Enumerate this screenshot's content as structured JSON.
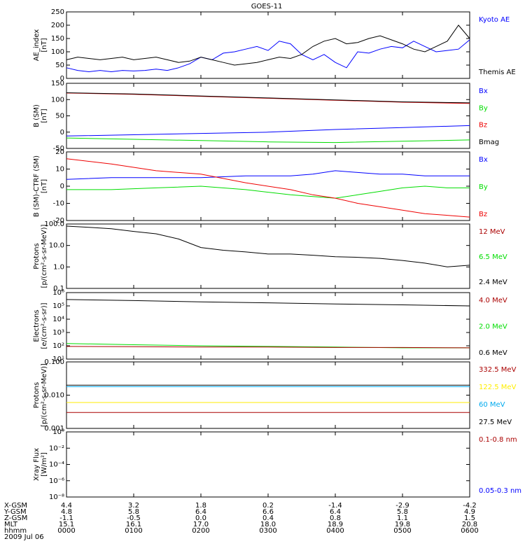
{
  "title": "GOES-11",
  "colors": {
    "black": "#000000",
    "blue": "#0000ff",
    "green": "#00dd00",
    "red": "#ee0000",
    "darkred": "#aa0000",
    "yellow": "#ffee00",
    "cyan": "#00aaee"
  },
  "chart_data": [
    {
      "type": "line",
      "id": "ae",
      "ylabel": [
        "AE_index",
        "[nT]"
      ],
      "ylim": [
        0,
        250
      ],
      "yticks": [
        "0",
        "50",
        "100",
        "150",
        "200",
        "250"
      ],
      "legend": [
        {
          "name": "Kyoto AE",
          "color": "blue"
        },
        {
          "name": "Themis AE",
          "color": "black"
        }
      ],
      "series": [
        {
          "name": "Kyoto AE",
          "color": "blue",
          "x": [
            0,
            10,
            20,
            30,
            40,
            50,
            60,
            70,
            80,
            90,
            100,
            110,
            120,
            130,
            140,
            150,
            160,
            170,
            180,
            190,
            200,
            210,
            220,
            230,
            240,
            250,
            260,
            270,
            280,
            290,
            300,
            310,
            320,
            330,
            340,
            350,
            360
          ],
          "values": [
            40,
            30,
            25,
            30,
            25,
            30,
            28,
            30,
            35,
            30,
            40,
            55,
            80,
            70,
            95,
            100,
            110,
            120,
            105,
            140,
            130,
            90,
            70,
            90,
            60,
            40,
            100,
            95,
            110,
            120,
            115,
            140,
            120,
            100,
            105,
            110,
            145
          ]
        },
        {
          "name": "Themis AE",
          "color": "black",
          "x": [
            0,
            10,
            20,
            30,
            40,
            50,
            60,
            70,
            80,
            90,
            100,
            110,
            120,
            130,
            140,
            150,
            160,
            170,
            180,
            190,
            200,
            210,
            220,
            230,
            240,
            250,
            260,
            270,
            280,
            290,
            300,
            310,
            320,
            330,
            340,
            350,
            360
          ],
          "values": [
            70,
            80,
            75,
            70,
            75,
            80,
            70,
            75,
            80,
            70,
            60,
            65,
            80,
            70,
            60,
            50,
            55,
            60,
            70,
            80,
            75,
            90,
            120,
            140,
            150,
            130,
            135,
            150,
            160,
            145,
            130,
            110,
            100,
            120,
            140,
            200,
            150
          ]
        }
      ]
    },
    {
      "type": "line",
      "id": "bsm",
      "ylabel": [
        "B (SM)",
        "[nT]"
      ],
      "ylim": [
        -50,
        150
      ],
      "yticks": [
        "-50",
        "0",
        "50",
        "100",
        "150"
      ],
      "legend": [
        {
          "name": "Bx",
          "color": "blue"
        },
        {
          "name": "By",
          "color": "green"
        },
        {
          "name": "Bz",
          "color": "red"
        },
        {
          "name": "Bmag",
          "color": "black"
        }
      ],
      "series": [
        {
          "name": "Bx",
          "color": "blue",
          "x": [
            0,
            60,
            120,
            180,
            240,
            300,
            360
          ],
          "values": [
            -12,
            -8,
            -4,
            0,
            8,
            14,
            20
          ]
        },
        {
          "name": "By",
          "color": "green",
          "x": [
            0,
            60,
            120,
            180,
            240,
            300,
            360
          ],
          "values": [
            -18,
            -22,
            -26,
            -30,
            -32,
            -28,
            -24
          ]
        },
        {
          "name": "Bz",
          "color": "red",
          "x": [
            0,
            60,
            120,
            180,
            240,
            300,
            360
          ],
          "values": [
            120,
            116,
            110,
            104,
            98,
            92,
            88
          ]
        },
        {
          "name": "Bmag",
          "color": "black",
          "x": [
            0,
            60,
            120,
            180,
            240,
            300,
            360
          ],
          "values": [
            121,
            117,
            111,
            105,
            99,
            93,
            90
          ]
        }
      ]
    },
    {
      "type": "line",
      "id": "btrf",
      "ylabel": [
        "B (SM)-CTRF (SM)",
        "[nT]"
      ],
      "ylim": [
        -20,
        20
      ],
      "yticks": [
        "-20",
        "-10",
        "0",
        "10",
        "20"
      ],
      "legend": [
        {
          "name": "Bx",
          "color": "blue"
        },
        {
          "name": "By",
          "color": "green"
        },
        {
          "name": "Bz",
          "color": "red"
        }
      ],
      "series": [
        {
          "name": "Bx",
          "color": "blue",
          "x": [
            0,
            40,
            80,
            120,
            160,
            200,
            220,
            240,
            260,
            280,
            300,
            320,
            340,
            360
          ],
          "values": [
            4,
            5,
            5,
            5,
            6,
            6,
            7,
            9,
            8,
            7,
            7,
            6,
            6,
            6
          ]
        },
        {
          "name": "By",
          "color": "green",
          "x": [
            0,
            40,
            80,
            120,
            160,
            200,
            220,
            240,
            260,
            280,
            300,
            320,
            340,
            360
          ],
          "values": [
            -2,
            -2,
            -1,
            0,
            -2,
            -5,
            -6,
            -7,
            -5,
            -3,
            -1,
            0,
            -1,
            -1
          ]
        },
        {
          "name": "Bz",
          "color": "red",
          "x": [
            0,
            40,
            80,
            120,
            160,
            200,
            220,
            240,
            260,
            280,
            300,
            320,
            340,
            360
          ],
          "values": [
            16,
            13,
            9,
            7,
            2,
            -2,
            -5,
            -7,
            -10,
            -12,
            -14,
            -16,
            -17,
            -18
          ]
        }
      ]
    },
    {
      "type": "line",
      "id": "protons1",
      "ylabel": [
        "Protons",
        "[p/(cm²-s-sr-MeV)]"
      ],
      "ylim": [
        0.1,
        100
      ],
      "log": true,
      "yticks": [
        "0.1",
        "1.0",
        "10.0",
        "100.0"
      ],
      "legend": [
        {
          "name": "12 MeV",
          "color": "darkred"
        },
        {
          "name": "6.5 MeV",
          "color": "green"
        },
        {
          "name": "2.4 MeV",
          "color": "black"
        }
      ],
      "series": [
        {
          "name": "2.4 MeV",
          "color": "black",
          "x": [
            0,
            20,
            40,
            60,
            80,
            100,
            120,
            140,
            160,
            180,
            200,
            220,
            240,
            260,
            280,
            300,
            320,
            340,
            360
          ],
          "values": [
            80,
            70,
            60,
            45,
            35,
            20,
            8,
            6,
            5,
            4,
            4,
            3.5,
            3,
            2.8,
            2.5,
            2,
            1.5,
            1,
            1.2
          ]
        }
      ]
    },
    {
      "type": "line",
      "id": "electrons",
      "ylabel": [
        "Electrons",
        "[e/(cm²-s-sr)]"
      ],
      "ylim": [
        10,
        1000000
      ],
      "log": true,
      "yticks": [
        "10¹",
        "10²",
        "10³",
        "10⁴",
        "10⁵",
        "10⁶"
      ],
      "legend": [
        {
          "name": "4.0 MeV",
          "color": "darkred"
        },
        {
          "name": "2.0 MeV",
          "color": "green"
        },
        {
          "name": "0.6 MeV",
          "color": "black"
        }
      ],
      "series": [
        {
          "name": "0.6 MeV",
          "color": "black",
          "x": [
            0,
            60,
            120,
            180,
            240,
            300,
            360
          ],
          "values": [
            300000,
            250000,
            200000,
            170000,
            140000,
            120000,
            100000
          ]
        },
        {
          "name": "2.0 MeV",
          "color": "green",
          "x": [
            0,
            60,
            120,
            180,
            240,
            300,
            360
          ],
          "values": [
            150,
            120,
            100,
            90,
            80,
            70,
            70
          ]
        },
        {
          "name": "4.0 MeV",
          "color": "darkred",
          "x": [
            0,
            60,
            120,
            180,
            240,
            300,
            360
          ],
          "values": [
            90,
            85,
            80,
            80,
            75,
            75,
            70
          ]
        }
      ]
    },
    {
      "type": "line",
      "id": "protons2",
      "ylabel": [
        "Protons",
        "[p/(cm²-s-sr-MeV)]"
      ],
      "ylim": [
        0.001,
        0.1
      ],
      "log": true,
      "yticks": [
        "0.001",
        "0.010",
        "0.100"
      ],
      "legend": [
        {
          "name": "332.5 MeV",
          "color": "darkred"
        },
        {
          "name": "122.5 MeV",
          "color": "yellow"
        },
        {
          "name": "60 MeV",
          "color": "cyan"
        },
        {
          "name": "27.5 MeV",
          "color": "black"
        }
      ],
      "series": [
        {
          "name": "27.5 MeV",
          "color": "black",
          "x": [
            0,
            60,
            120,
            180,
            240,
            300,
            360
          ],
          "values": [
            0.02,
            0.02,
            0.02,
            0.02,
            0.02,
            0.02,
            0.02
          ]
        },
        {
          "name": "60 MeV",
          "color": "cyan",
          "x": [
            0,
            60,
            120,
            180,
            240,
            300,
            360
          ],
          "values": [
            0.018,
            0.018,
            0.018,
            0.018,
            0.018,
            0.018,
            0.018
          ]
        },
        {
          "name": "122.5 MeV",
          "color": "yellow",
          "x": [
            0,
            60,
            120,
            180,
            240,
            300,
            360
          ],
          "values": [
            0.006,
            0.006,
            0.006,
            0.006,
            0.006,
            0.006,
            0.006
          ]
        },
        {
          "name": "332.5 MeV",
          "color": "darkred",
          "x": [
            0,
            60,
            120,
            180,
            240,
            300,
            360
          ],
          "values": [
            0.003,
            0.003,
            0.003,
            0.003,
            0.003,
            0.003,
            0.003
          ]
        }
      ]
    },
    {
      "type": "line",
      "id": "xray",
      "ylabel": [
        "Xray Flux",
        "[W/m²]"
      ],
      "ylim": [
        1e-08,
        1
      ],
      "log": true,
      "yticks": [
        "10⁻⁸",
        "10⁻⁶",
        "10⁻⁴",
        "10⁻²",
        "10⁰"
      ],
      "legend": [
        {
          "name": "0.1-0.8 nm",
          "color": "darkred"
        },
        {
          "name": "0.05-0.3 nm",
          "color": "blue"
        }
      ],
      "series": []
    }
  ],
  "footer": {
    "row_labels": [
      "X-GSM",
      "Y-GSM",
      "Z-GSM",
      "MLT",
      "hhmm",
      "2009 Jul 06"
    ],
    "columns": [
      [
        "4.4",
        "4.8",
        "-1.1",
        "15.1",
        "0000"
      ],
      [
        "3.2",
        "5.8",
        "-0.5",
        "16.1",
        "0100"
      ],
      [
        "1.8",
        "6.4",
        "0.0",
        "17.0",
        "0200"
      ],
      [
        "0.2",
        "6.6",
        "0.4",
        "18.0",
        "0300"
      ],
      [
        "-1.4",
        "6.4",
        "0.8",
        "18.9",
        "0400"
      ],
      [
        "-2.9",
        "5.8",
        "1.1",
        "19.8",
        "0500"
      ],
      [
        "-4.2",
        "4.9",
        "1.5",
        "20.8",
        "0600"
      ]
    ]
  }
}
